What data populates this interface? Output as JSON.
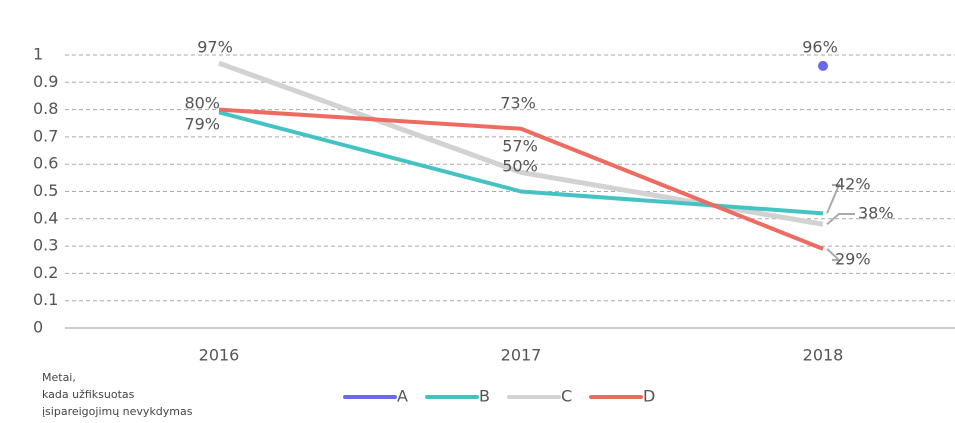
{
  "chart_data": {
    "type": "line",
    "categories": [
      "2016",
      "2017",
      "2018"
    ],
    "series": [
      {
        "name": "A",
        "color": "#6a6ae6",
        "values": [
          null,
          null,
          0.96
        ],
        "value_labels": [
          null,
          null,
          "96%"
        ]
      },
      {
        "name": "B",
        "color": "#45c3c3",
        "values": [
          0.79,
          0.5,
          0.42
        ],
        "value_labels": [
          "79%",
          "50%",
          "42%"
        ]
      },
      {
        "name": "C",
        "color": "#d2d2d2",
        "values": [
          0.97,
          0.57,
          0.38
        ],
        "value_labels": [
          "97%",
          "57%",
          "38%"
        ]
      },
      {
        "name": "D",
        "color": "#ee6b61",
        "values": [
          0.8,
          0.73,
          0.29
        ],
        "value_labels": [
          "80%",
          "73%",
          "29%"
        ]
      }
    ],
    "ylim": [
      0,
      1
    ],
    "yticks": [
      0,
      0.1,
      0.2,
      0.3,
      0.4,
      0.5,
      0.6,
      0.7,
      0.8,
      0.9,
      1
    ],
    "grid": true,
    "axis_note": [
      "Metai,",
      "kada užfiksuotas",
      "įsipareigojimų nevykdymas"
    ],
    "legend": "bottom"
  }
}
